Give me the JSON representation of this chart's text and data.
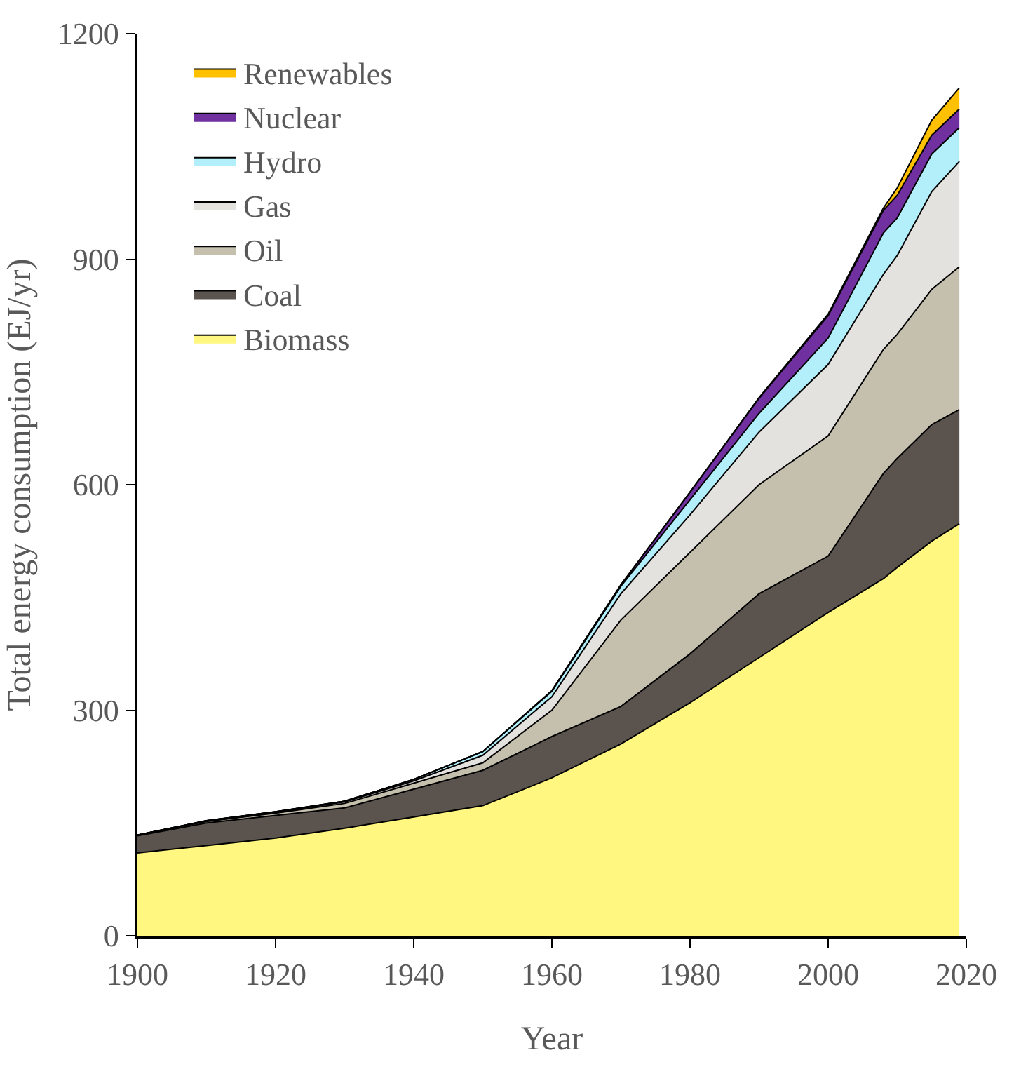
{
  "chart_data": {
    "type": "area",
    "stacked": true,
    "xlabel": "Year",
    "ylabel": "Total energy consumption (EJ/yr)",
    "x": [
      1900,
      1910,
      1920,
      1930,
      1940,
      1950,
      1960,
      1970,
      1980,
      1990,
      2000,
      2008,
      2010,
      2015,
      2019
    ],
    "series": [
      {
        "name": "Biomass",
        "color": "#fff77f",
        "values": [
          110,
          120,
          130,
          143,
          158,
          173,
          210,
          255,
          310,
          370,
          430,
          475,
          490,
          525,
          548
        ]
      },
      {
        "name": "Coal",
        "color": "#5b534d",
        "values": [
          23,
          30,
          30,
          27,
          37,
          47,
          55,
          50,
          65,
          85,
          75,
          140,
          145,
          155,
          152
        ]
      },
      {
        "name": "Oil",
        "color": "#c5bfad",
        "values": [
          1,
          2,
          3,
          6,
          8,
          10,
          35,
          115,
          135,
          145,
          160,
          165,
          165,
          180,
          190
        ]
      },
      {
        "name": "Gas",
        "color": "#e3e2df",
        "values": [
          0,
          0,
          1,
          2,
          3,
          10,
          18,
          35,
          50,
          70,
          95,
          100,
          105,
          130,
          140
        ]
      },
      {
        "name": "Hydro",
        "color": "#b2effb",
        "values": [
          0,
          1,
          1,
          1,
          2,
          5,
          7,
          10,
          20,
          25,
          35,
          55,
          50,
          50,
          45
        ]
      },
      {
        "name": "Nuclear",
        "color": "#7030a0",
        "values": [
          0,
          0,
          0,
          0,
          0,
          0,
          1,
          2,
          10,
          20,
          30,
          30,
          30,
          25,
          25
        ]
      },
      {
        "name": "Renewables",
        "color": "#ffc000",
        "values": [
          0,
          0,
          0,
          0,
          0,
          0,
          0,
          0,
          0,
          1,
          2,
          3,
          10,
          20,
          28
        ]
      }
    ],
    "xlim": [
      1900,
      2020
    ],
    "xticks": [
      1900,
      1920,
      1940,
      1960,
      1980,
      2000,
      2020
    ],
    "ylim": [
      0,
      1200
    ],
    "yticks": [
      0,
      300,
      600,
      900,
      1200
    ],
    "legend": "top left"
  }
}
